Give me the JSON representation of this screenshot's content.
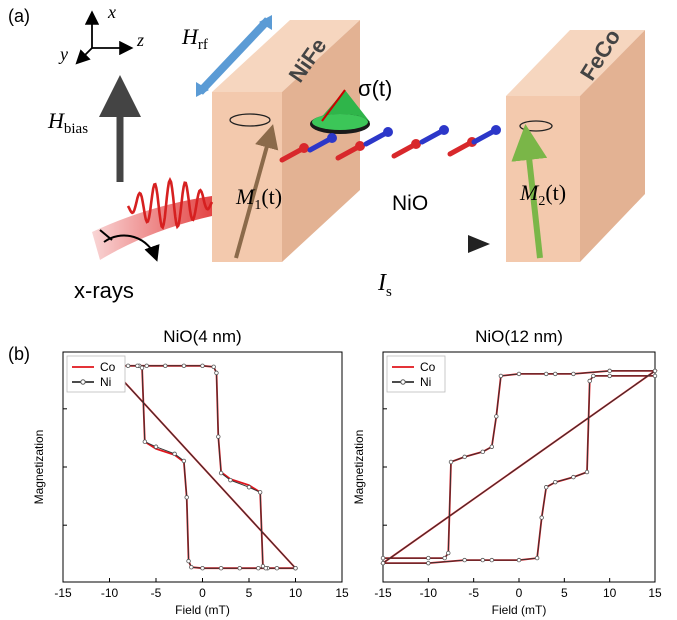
{
  "panel_a": {
    "label": "(a)",
    "axes": {
      "x": "x",
      "y": "y",
      "z": "z"
    },
    "h_rf": {
      "main": "H",
      "sub": "rf"
    },
    "h_bias": {
      "main": "H",
      "sub": "bias"
    },
    "layer_left": "NiFe",
    "layer_right": "FeCo",
    "spacer": "NiO",
    "sigma": "σ(t)",
    "m1": {
      "main": "M",
      "sub": "1",
      "tail": "(t)"
    },
    "m2": {
      "main": "M",
      "sub": "2",
      "tail": "(t)"
    },
    "is": {
      "main": "I",
      "sub": "s"
    },
    "xrays": "x-rays",
    "colors": {
      "slab": "#f3c9ad",
      "slab_side": "#e3b293",
      "rf_arrow": "#5b9bd5",
      "m1": "#8b6a4a",
      "m2": "#7ab648",
      "cone": "#2fb54a",
      "red_spin": "#d8282b",
      "blue_spin": "#2c37c9"
    }
  },
  "panel_b": {
    "label": "(b)"
  },
  "chart_data": [
    {
      "type": "line",
      "title": "NiO(4 nm)",
      "xlabel": "Field (mT)",
      "ylabel": "Magnetization",
      "xlim": [
        -15,
        15
      ],
      "xticks": [
        "-15",
        "-10",
        "-5",
        "0",
        "5",
        "10",
        "15"
      ],
      "legend": "top-left",
      "series": [
        {
          "name": "Co",
          "color": "#e0141c",
          "x": [
            -10,
            -8,
            -6.8,
            -6.5,
            -6.2,
            -5,
            -3,
            -2,
            -1.7,
            -1.5,
            -1.2,
            0,
            2,
            4,
            6,
            7,
            10
          ],
          "y": [
            1,
            1,
            1,
            0.98,
            0.25,
            0.18,
            0.12,
            0.05,
            -0.3,
            -0.93,
            -0.99,
            -1,
            -1,
            -1,
            -1,
            -1,
            -1
          ]
        },
        {
          "name": "Ni",
          "color": "#333333",
          "x": [
            -10,
            -8,
            -6.8,
            -6.5,
            -6.2,
            -5,
            -3,
            -2,
            -1.7,
            -1.5,
            -1.2,
            0,
            2,
            4,
            6,
            7,
            10
          ],
          "y": [
            1,
            1,
            1,
            0.98,
            0.25,
            0.2,
            0.13,
            0.06,
            -0.3,
            -0.93,
            -0.99,
            -1,
            -1,
            -1,
            -1,
            -1,
            -1
          ]
        }
      ]
    },
    {
      "type": "line",
      "title": "NiO(12 nm)",
      "xlabel": "Field (mT)",
      "ylabel": "Magnetization",
      "xlim": [
        -15,
        15
      ],
      "xticks": [
        "-15",
        "-10",
        "-5",
        "0",
        "5",
        "10",
        "15"
      ],
      "legend": "top-left",
      "series": [
        {
          "name": "Co",
          "color": "#e0141c",
          "x": [
            -15,
            -10,
            -8.2,
            -7.8,
            -7.5,
            -6,
            -4,
            -3,
            -2.5,
            -2,
            0,
            3,
            4,
            6,
            10,
            15
          ],
          "y": [
            -0.9,
            -0.9,
            -0.9,
            -0.85,
            0.05,
            0.1,
            0.15,
            0.2,
            0.5,
            0.9,
            0.92,
            0.92,
            0.92,
            0.92,
            0.95,
            0.95
          ]
        },
        {
          "name": "Ni",
          "color": "#333333",
          "x": [
            -15,
            -10,
            -8.2,
            -7.8,
            -7.5,
            -6,
            -4,
            -3,
            -2.5,
            -2,
            0,
            3,
            4,
            6,
            10,
            15
          ],
          "y": [
            -0.9,
            -0.9,
            -0.9,
            -0.85,
            0.05,
            0.1,
            0.15,
            0.2,
            0.5,
            0.9,
            0.92,
            0.92,
            0.92,
            0.92,
            0.95,
            0.95
          ]
        }
      ]
    }
  ]
}
